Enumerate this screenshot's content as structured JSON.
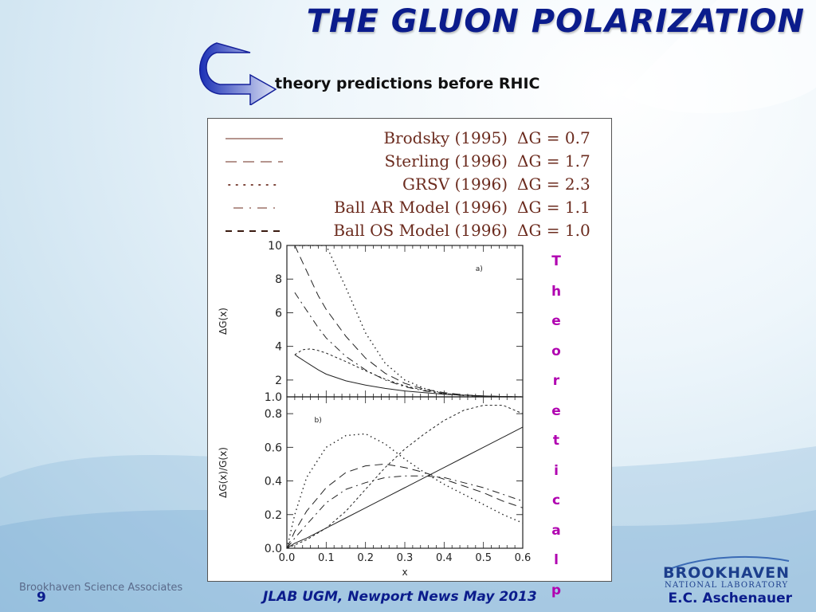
{
  "slide": {
    "title": "THE GLUON POLARIZATION",
    "subtitle": "theory predictions before RHIC",
    "side_text": "Theoretical p",
    "footer_left": "Brookhaven Science Associates",
    "page_number": "9",
    "footer_center": "JLAB UGM, Newport News May 2013",
    "footer_right": "E.C. Aschenauer",
    "logo_line1": "BROOKHAVEN",
    "logo_line2": "NATIONAL LABORATORY",
    "colors": {
      "title": "#0b1c8c",
      "legend_text": "#6b2b1e",
      "side_text": "#b000b0"
    }
  },
  "legend": [
    {
      "sample": "——",
      "style": "solid",
      "name": "Brodsky  (1995)",
      "dg": "ΔG = 0.7"
    },
    {
      "sample": "– – –",
      "style": "dashed",
      "name": "Sterling  (1996)",
      "dg": "ΔG = 1.7"
    },
    {
      "sample": "· · · · ··",
      "style": "dotted",
      "name": "GRSV  (1996)",
      "dg": "ΔG = 2.3"
    },
    {
      "sample": "– · –",
      "style": "dashdot",
      "name": "Ball AR Model (1996)",
      "dg": "ΔG = 1.1"
    },
    {
      "sample": "- - - -",
      "style": "shortdash",
      "name": "Ball OS Model (1996)",
      "dg": "ΔG = 1.0"
    }
  ],
  "chart_data": [
    {
      "type": "line",
      "panel_label": "a)",
      "ylabel": "ΔG(x)",
      "xlim": [
        0.0,
        0.6
      ],
      "ylim": [
        1.0,
        10
      ],
      "yticks": [
        "1.0",
        "2",
        "4",
        "6",
        "8",
        "10"
      ],
      "x": [
        0.02,
        0.04,
        0.06,
        0.08,
        0.1,
        0.15,
        0.2,
        0.25,
        0.3,
        0.35,
        0.4,
        0.45,
        0.5,
        0.55,
        0.6
      ],
      "series": [
        {
          "style": "solid",
          "values": [
            3.5,
            3.2,
            2.9,
            2.6,
            2.35,
            1.95,
            1.7,
            1.5,
            1.35,
            1.25,
            1.15,
            1.1,
            1.05,
            1.02,
            1.0
          ]
        },
        {
          "style": "dashed",
          "values": [
            10,
            9.0,
            8.0,
            7.0,
            6.2,
            4.6,
            3.3,
            2.4,
            1.8,
            1.45,
            1.25,
            1.12,
            1.05,
            1.02,
            1.0
          ]
        },
        {
          "style": "dotted",
          "values": [
            10,
            10,
            10,
            10,
            10,
            7.5,
            4.8,
            3.0,
            2.0,
            1.5,
            1.2,
            1.08,
            1.03,
            1.01,
            1.0
          ]
        },
        {
          "style": "dashdot",
          "values": [
            7.2,
            6.5,
            5.8,
            5.1,
            4.5,
            3.4,
            2.6,
            2.0,
            1.6,
            1.35,
            1.18,
            1.08,
            1.03,
            1.01,
            1.0
          ]
        },
        {
          "style": "shortdash",
          "values": [
            3.5,
            3.8,
            3.85,
            3.75,
            3.6,
            3.1,
            2.55,
            2.05,
            1.65,
            1.4,
            1.2,
            1.1,
            1.04,
            1.01,
            1.0
          ]
        }
      ]
    },
    {
      "type": "line",
      "panel_label": "b)",
      "xlabel": "x",
      "ylabel": "ΔG(x)/G(x)",
      "xlim": [
        0.0,
        0.6
      ],
      "ylim": [
        0.0,
        0.9
      ],
      "xticks": [
        "0.0",
        "0.1",
        "0.2",
        "0.3",
        "0.4",
        "0.5",
        "0.6"
      ],
      "yticks": [
        "0.0",
        "0.2",
        "0.4",
        "0.6",
        "0.8"
      ],
      "x": [
        0.0,
        0.02,
        0.05,
        0.1,
        0.15,
        0.2,
        0.25,
        0.3,
        0.35,
        0.4,
        0.45,
        0.5,
        0.55,
        0.6
      ],
      "series": [
        {
          "style": "solid",
          "values": [
            0.0,
            0.03,
            0.06,
            0.12,
            0.18,
            0.24,
            0.3,
            0.36,
            0.42,
            0.48,
            0.54,
            0.6,
            0.66,
            0.72
          ]
        },
        {
          "style": "dashed",
          "values": [
            0.0,
            0.1,
            0.22,
            0.36,
            0.45,
            0.49,
            0.5,
            0.48,
            0.45,
            0.41,
            0.37,
            0.33,
            0.28,
            0.24
          ]
        },
        {
          "style": "dotted",
          "values": [
            0.0,
            0.2,
            0.42,
            0.6,
            0.67,
            0.68,
            0.62,
            0.53,
            0.45,
            0.38,
            0.32,
            0.26,
            0.2,
            0.15
          ]
        },
        {
          "style": "dashdot",
          "values": [
            0.0,
            0.06,
            0.14,
            0.27,
            0.35,
            0.39,
            0.42,
            0.43,
            0.43,
            0.42,
            0.39,
            0.36,
            0.32,
            0.28
          ]
        },
        {
          "style": "shortdash",
          "values": [
            0.0,
            0.02,
            0.05,
            0.12,
            0.22,
            0.35,
            0.48,
            0.59,
            0.68,
            0.76,
            0.82,
            0.85,
            0.85,
            0.8
          ]
        }
      ]
    }
  ]
}
